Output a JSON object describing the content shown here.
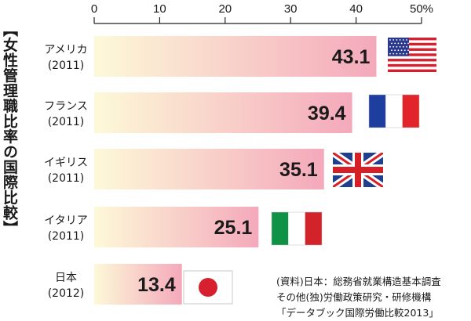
{
  "title": "【女性管理職比率の国際比較】",
  "chart_data": {
    "type": "bar",
    "orientation": "horizontal",
    "categories": [
      {
        "name": "アメリカ",
        "year": "(2011)",
        "flag": "usa-flag"
      },
      {
        "name": "フランス",
        "year": "(2011)",
        "flag": "france-flag"
      },
      {
        "name": "イギリス",
        "year": "(2011)",
        "flag": "uk-flag"
      },
      {
        "name": "イタリア",
        "year": "(2011)",
        "flag": "italy-flag"
      },
      {
        "name": "日本",
        "year": "(2012)",
        "flag": "japan-flag"
      }
    ],
    "values": [
      43.1,
      39.4,
      35.1,
      25.1,
      13.4
    ],
    "value_labels": [
      "43.1",
      "39.4",
      "35.1",
      "25.1",
      "13.4"
    ],
    "xlim": [
      0,
      50
    ],
    "ticks": [
      "0",
      "10",
      "20",
      "30",
      "40",
      "50%"
    ],
    "tick_values": [
      0,
      10,
      20,
      30,
      40,
      50
    ],
    "axis_position": "top",
    "grid": false,
    "bar_gradient": [
      "#fdf9d8",
      "#f4a9bb"
    ]
  },
  "source": {
    "line1": "(資料)日本：総務省就業構造基本調査",
    "line2": "その他(独)労働政策研究・研修機構",
    "line3": "「データブック国際労働比較2013」"
  }
}
